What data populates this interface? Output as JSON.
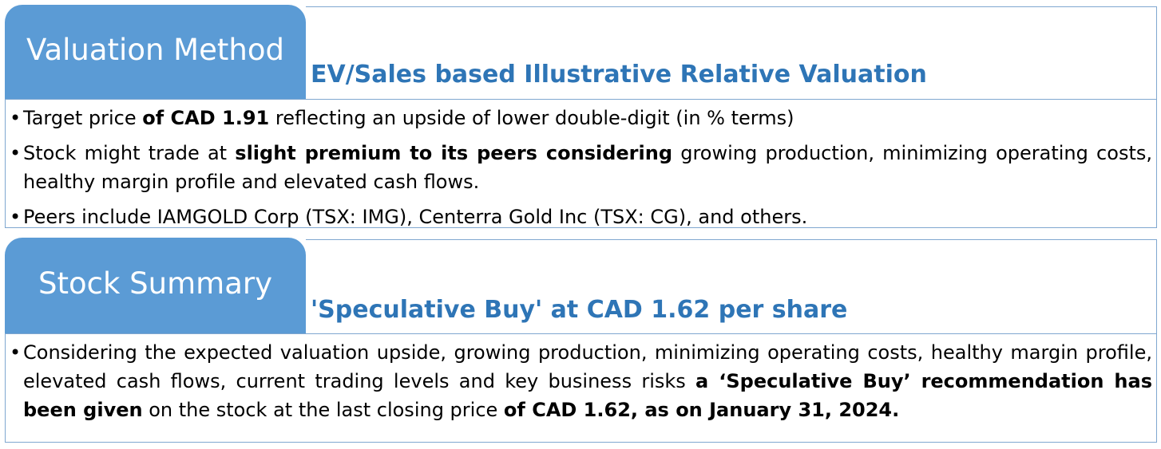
{
  "valuation": {
    "tab_label": "Valuation Method",
    "subtitle": "EV/Sales based Illustrative Relative Valuation",
    "bullets": [
      {
        "parts": [
          {
            "text": "Target price ",
            "bold": false
          },
          {
            "text": "of CAD 1.91",
            "bold": true
          },
          {
            "text": " reflecting an upside of lower double-digit (in % terms)",
            "bold": false
          }
        ]
      },
      {
        "parts": [
          {
            "text": "Stock might trade at ",
            "bold": false
          },
          {
            "text": "slight premium to its peers considering",
            "bold": true
          },
          {
            "text": " growing production, minimizing operating costs, healthy margin profile and elevated cash flows.",
            "bold": false
          }
        ]
      },
      {
        "parts": [
          {
            "text": "Peers include IAMGOLD Corp (TSX: IMG), Centerra Gold Inc (TSX: CG), and others.",
            "bold": false
          }
        ]
      }
    ]
  },
  "summary": {
    "tab_label": "Stock Summary",
    "subtitle": "'Speculative Buy' at CAD 1.62 per share",
    "bullets": [
      {
        "parts": [
          {
            "text": "Considering the expected valuation upside, growing production, minimizing operating costs, healthy margin profile, elevated cash flows, current trading levels and key business risks ",
            "bold": false
          },
          {
            "text": "a ‘Speculative Buy’ recommendation has been given",
            "bold": true
          },
          {
            "text": " on the stock at the last closing price ",
            "bold": false
          },
          {
            "text": "of CAD 1.62, as on January 31, 2024.",
            "bold": true
          }
        ]
      }
    ]
  }
}
